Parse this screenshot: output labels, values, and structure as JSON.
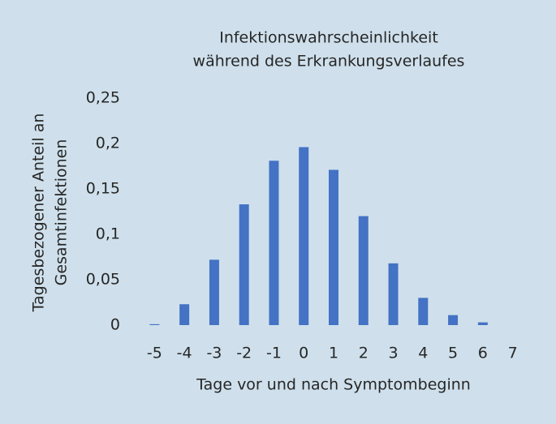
{
  "chart_data": {
    "type": "bar",
    "title": [
      "Infektionswahrscheinlichkeit",
      "während des Erkrankungsverlaufes"
    ],
    "y_label": [
      "Tagesbezogener Anteil an",
      "Gesamtinfektionen"
    ],
    "x_label": "Tage vor und nach Symptombeginn",
    "categories": [
      "-5",
      "-4",
      "-3",
      "-2",
      "-1",
      "0",
      "1",
      "2",
      "3",
      "4",
      "5",
      "6",
      "7"
    ],
    "values": [
      0.001,
      0.023,
      0.072,
      0.133,
      0.181,
      0.196,
      0.171,
      0.12,
      0.068,
      0.03,
      0.011,
      0.003,
      0
    ],
    "color": "#4472c4",
    "ylim": [
      0,
      0.25
    ],
    "yticks": [
      0,
      {
        "value": 0.05,
        "label": "0,05"
      },
      {
        "value": 0.1,
        "label": "0,1"
      },
      {
        "value": 0.15,
        "label": "0,15"
      },
      {
        "value": 0.2,
        "label": "0,2"
      },
      {
        "value": 0.25,
        "label": "0,25"
      }
    ],
    "grid": false
  }
}
